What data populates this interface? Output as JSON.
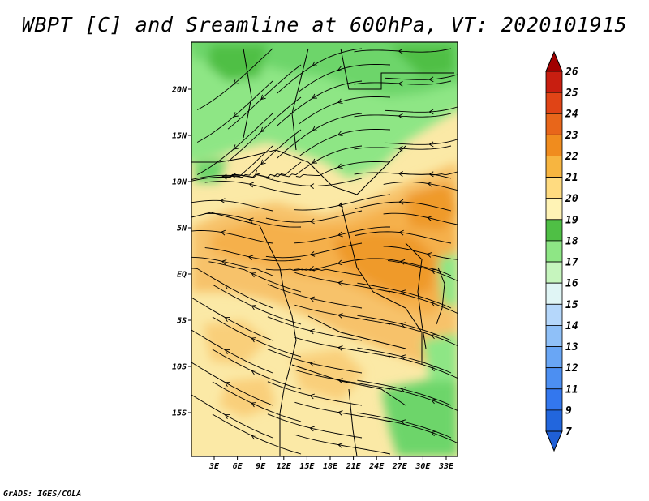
{
  "title": "WBPT [C] and Sreamline at 600hPa, VT: 2020101915",
  "credit": "GrADS: IGES/COLA",
  "map": {
    "lon_labels": [
      "3E",
      "6E",
      "9E",
      "12E",
      "15E",
      "18E",
      "21E",
      "24E",
      "27E",
      "30E",
      "33E"
    ],
    "lat_labels": [
      "20N",
      "15N",
      "10N",
      "5N",
      "EQ",
      "5S",
      "10S",
      "15S"
    ]
  },
  "colorbar": {
    "levels": [
      "7",
      "9",
      "11",
      "12",
      "13",
      "14",
      "15",
      "16",
      "17",
      "18",
      "19",
      "20",
      "21",
      "22",
      "23",
      "24",
      "25",
      "26"
    ],
    "colors": [
      "#2266dd",
      "#3377ee",
      "#4c8ff2",
      "#69a6f5",
      "#8fc0f8",
      "#b5d7fb",
      "#e0f5f5",
      "#c6f5be",
      "#8ee685",
      "#4fbf45",
      "#fff3b5",
      "#ffdb80",
      "#f7b540",
      "#f08c1e",
      "#e8661a",
      "#e04416",
      "#c81e10",
      "#b40a0a"
    ],
    "top_color": "#a00000",
    "bottom_color": "#1f5fd6"
  },
  "colors": {
    "green_dark": "#3cb043",
    "green_mid": "#6dd56a",
    "green_light": "#9ee58f",
    "yellow": "#fbe9a6",
    "yellow_orange": "#f9cf7a",
    "orange": "#f5b04b",
    "orange_deep": "#ef9a2c"
  }
}
